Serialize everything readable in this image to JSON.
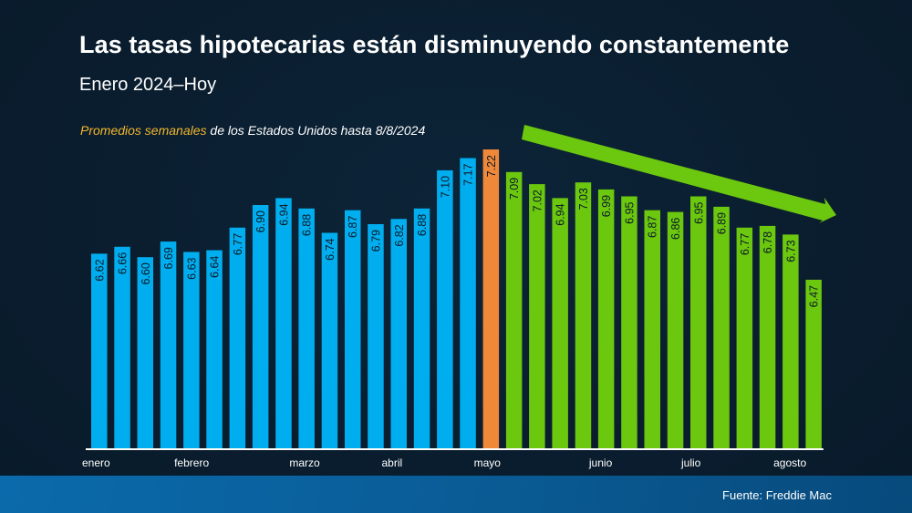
{
  "slide": {
    "title": "Las tasas hipotecarias están disminuyendo constantemente",
    "subtitle": "Enero 2024–Hoy",
    "note_highlight": "Promedios semanales",
    "note_rest": " de los Estados Unidos hasta 8/8/2024",
    "source": "Fuente: Freddie Mac"
  },
  "colors": {
    "rising": "#00aeef",
    "peak": "#f0883a",
    "falling": "#6cc70f",
    "arrow": "#6cc70f",
    "highlight_text": "#f3b72b",
    "background": "#0a1d2e",
    "footer": "#0a5e99"
  },
  "chart_data": {
    "type": "bar",
    "title": "Las tasas hipotecarias están disminuyendo constantemente",
    "subtitle": "Enero 2024–Hoy",
    "xlabel": "",
    "ylabel": "",
    "ylim": [
      5.5,
      7.4
    ],
    "grid": false,
    "legend": "none",
    "values": [
      6.62,
      6.66,
      6.6,
      6.69,
      6.63,
      6.64,
      6.77,
      6.9,
      6.94,
      6.88,
      6.74,
      6.87,
      6.79,
      6.82,
      6.88,
      7.1,
      7.17,
      7.22,
      7.09,
      7.02,
      6.94,
      7.03,
      6.99,
      6.95,
      6.87,
      6.86,
      6.95,
      6.89,
      6.77,
      6.78,
      6.73,
      6.47
    ],
    "value_labels": [
      "6.62",
      "6.66",
      "6.60",
      "6.69",
      "6.63",
      "6.64",
      "6.77",
      "6.90",
      "6.94",
      "6.88",
      "6.74",
      "6.87",
      "6.79",
      "6.82",
      "6.88",
      "7.10",
      "7.17",
      "7.22",
      "7.09",
      "7.02",
      "6.94",
      "7.03",
      "6.99",
      "6.95",
      "6.87",
      "6.86",
      "6.95",
      "6.89",
      "6.77",
      "6.78",
      "6.73",
      "6.47"
    ],
    "bar_groups": [
      "rising",
      "rising",
      "rising",
      "rising",
      "rising",
      "rising",
      "rising",
      "rising",
      "rising",
      "rising",
      "rising",
      "rising",
      "rising",
      "rising",
      "rising",
      "rising",
      "rising",
      "peak",
      "falling",
      "falling",
      "falling",
      "falling",
      "falling",
      "falling",
      "falling",
      "falling",
      "falling",
      "falling",
      "falling",
      "falling",
      "falling",
      "falling"
    ],
    "month_ticks": [
      {
        "label": "enero",
        "bar_index": 0
      },
      {
        "label": "febrero",
        "bar_index": 4
      },
      {
        "label": "marzo",
        "bar_index": 9
      },
      {
        "label": "abril",
        "bar_index": 13
      },
      {
        "label": "mayo",
        "bar_index": 17
      },
      {
        "label": "junio",
        "bar_index": 22
      },
      {
        "label": "julio",
        "bar_index": 26
      },
      {
        "label": "agosto",
        "bar_index": 30
      }
    ],
    "annotations": [
      "downward trend arrow from May peak toward August"
    ]
  }
}
